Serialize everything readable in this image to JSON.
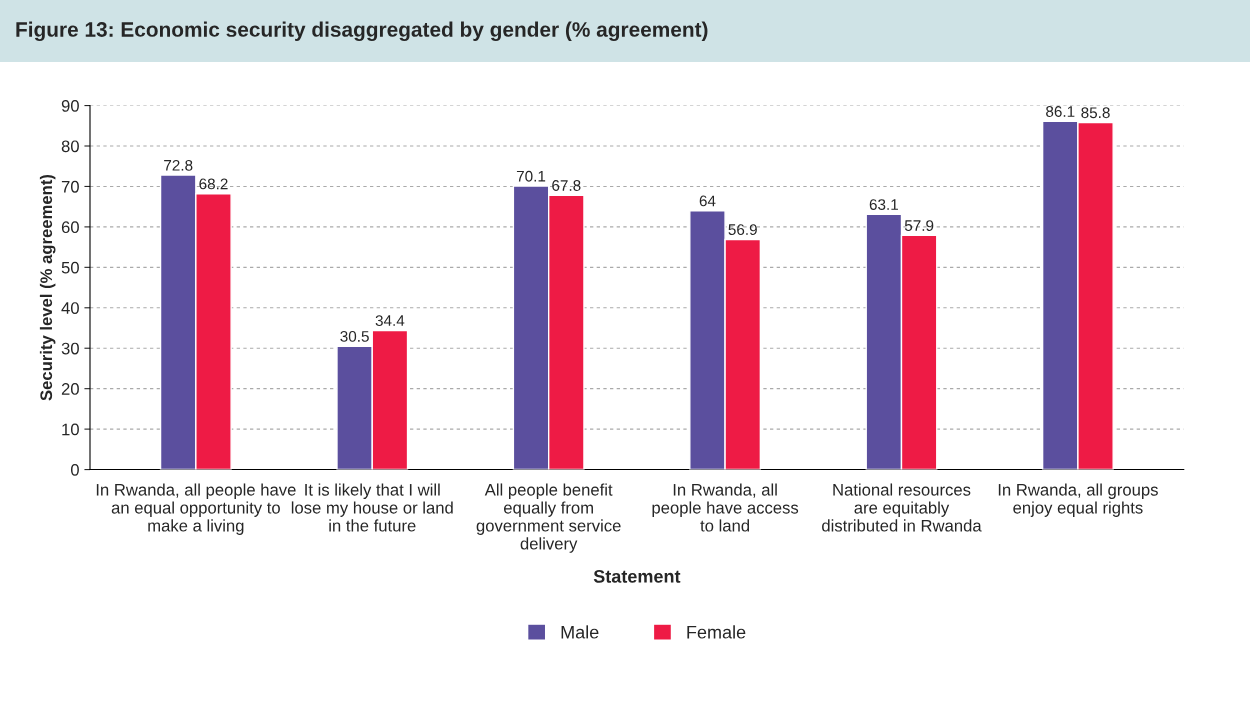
{
  "chart_data": {
    "type": "bar",
    "title": "Figure 13: Economic security disaggregated by gender (% agreement)",
    "xlabel": "Statement",
    "ylabel": "Security level (% agreement)",
    "categories": [
      "In Rwanda, all people have\nan equal opportunity to\nmake a living",
      "It is likely that I will\nlose my house or land\nin the future",
      "All people benefit\nequally from\ngovernment service\ndelivery",
      "In Rwanda, all\npeople have access\nto land",
      "National resources\nare equitably\ndistributed in Rwanda",
      "In Rwanda, all groups\nenjoy equal rights"
    ],
    "series": [
      {
        "name": "Male",
        "color": "#5b4f9e",
        "values": [
          72.8,
          30.5,
          70.1,
          64,
          63.1,
          86.1
        ]
      },
      {
        "name": "Female",
        "color": "#ee1b45",
        "values": [
          68.2,
          34.4,
          67.8,
          56.9,
          57.9,
          85.8
        ]
      }
    ],
    "ylim": [
      0,
      90
    ],
    "yticks": [
      0,
      10,
      20,
      30,
      40,
      50,
      60,
      70,
      80,
      90
    ],
    "grid": "y",
    "legend": "bottom",
    "data_labels": true
  }
}
